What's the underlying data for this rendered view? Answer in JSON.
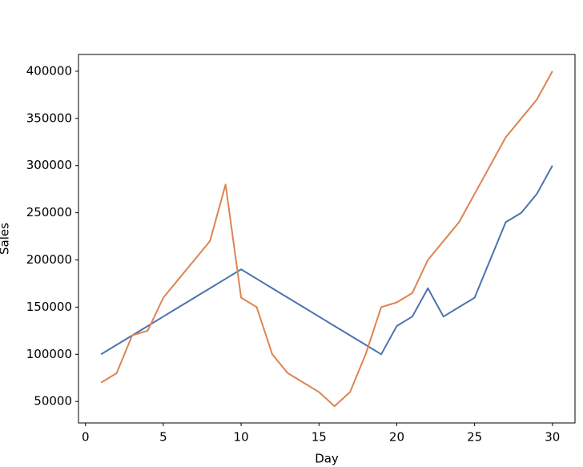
{
  "chart_data": {
    "type": "line",
    "x": [
      1,
      2,
      3,
      4,
      5,
      6,
      7,
      8,
      9,
      10,
      11,
      12,
      13,
      14,
      15,
      16,
      17,
      18,
      19,
      20,
      21,
      22,
      23,
      24,
      25,
      26,
      27,
      28,
      29,
      30
    ],
    "series": [
      {
        "color": "#4c72b0",
        "values": [
          100000,
          110000,
          120000,
          130000,
          140000,
          150000,
          160000,
          170000,
          180000,
          190000,
          180000,
          170000,
          160000,
          150000,
          140000,
          130000,
          120000,
          110000,
          100000,
          130000,
          140000,
          170000,
          140000,
          150000,
          160000,
          200000,
          240000,
          250000,
          270000,
          300000
        ]
      },
      {
        "color": "#dd8452",
        "values": [
          70000,
          80000,
          120000,
          125000,
          160000,
          180000,
          200000,
          220000,
          280000,
          160000,
          150000,
          100000,
          80000,
          70000,
          60000,
          45000,
          60000,
          100000,
          150000,
          155000,
          165000,
          200000,
          220000,
          240000,
          270000,
          300000,
          330000,
          350000,
          370000,
          400000
        ]
      }
    ],
    "xlabel": "Day",
    "ylabel": "Sales",
    "xlim": [
      -0.45,
      31.45
    ],
    "xticks": [
      0,
      5,
      10,
      15,
      20,
      25,
      30
    ],
    "ylim": [
      27250,
      417750
    ],
    "yticks": [
      50000,
      100000,
      150000,
      200000,
      250000,
      300000,
      350000,
      400000
    ]
  }
}
